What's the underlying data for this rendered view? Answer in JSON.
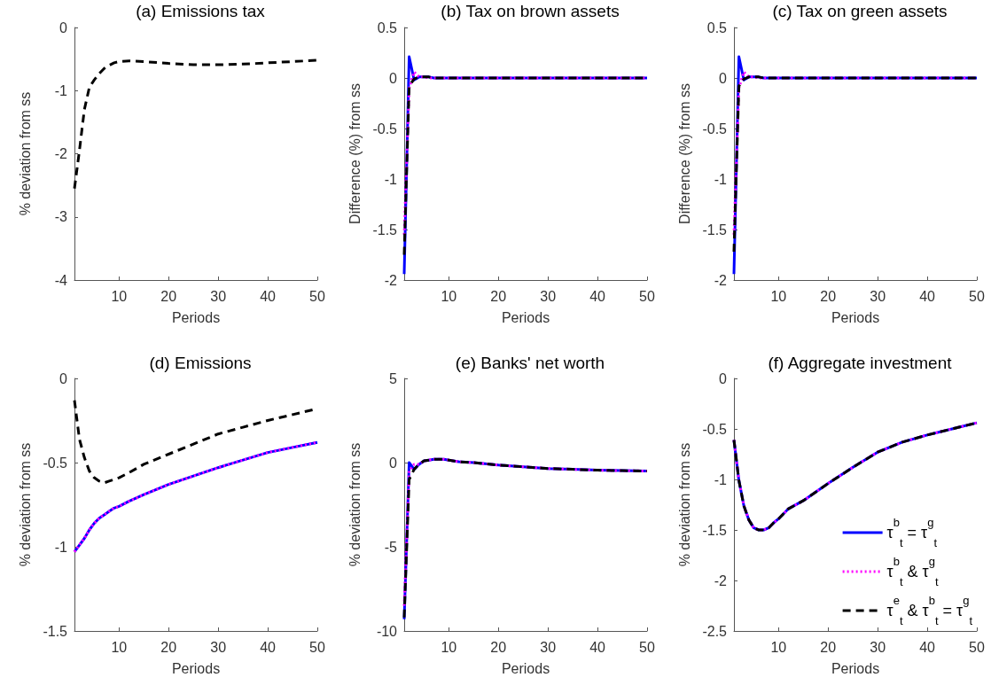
{
  "chart_data": [
    {
      "type": "line",
      "title": "(a) Emissions tax",
      "xlabel": "Periods",
      "ylabel": "% deviation from ss",
      "x": [
        1,
        2,
        3,
        4,
        5,
        6,
        7,
        8,
        9,
        10,
        12,
        15,
        20,
        25,
        30,
        35,
        40,
        45,
        50
      ],
      "xlim": [
        1,
        50
      ],
      "xticks": [
        10,
        20,
        30,
        40,
        50
      ],
      "ylim": [
        -4,
        0
      ],
      "yticks": [
        -4,
        -3,
        -2,
        -1,
        0
      ],
      "legend": false,
      "series": [
        {
          "color": "#000000",
          "line_style": "dashed",
          "values": [
            -2.55,
            -1.95,
            -1.3,
            -0.95,
            -0.83,
            -0.73,
            -0.65,
            -0.6,
            -0.56,
            -0.54,
            -0.53,
            -0.54,
            -0.57,
            -0.59,
            -0.59,
            -0.58,
            -0.56,
            -0.54,
            -0.52
          ]
        }
      ]
    },
    {
      "type": "line",
      "title": "(b) Tax on brown assets",
      "xlabel": "Periods",
      "ylabel": "Difference (%) from ss",
      "x": [
        1,
        2,
        3,
        4,
        5,
        6,
        7,
        8,
        9,
        10,
        12,
        15,
        20,
        25,
        30,
        35,
        40,
        45,
        50
      ],
      "xlim": [
        1,
        50
      ],
      "xticks": [
        10,
        20,
        30,
        40,
        50
      ],
      "ylim": [
        -2,
        0.5
      ],
      "yticks": [
        -2,
        -1.5,
        -1,
        -0.5,
        0,
        0.5
      ],
      "legend": false,
      "series": [
        {
          "color": "#0000ff",
          "line_style": "solid",
          "values": [
            -1.94,
            0.21,
            -0.02,
            0.01,
            0.01,
            0.01,
            0,
            0,
            0,
            0,
            0,
            0,
            0,
            0,
            0,
            0,
            0,
            0,
            0
          ]
        },
        {
          "color": "#ff00ff",
          "line_style": "dotted",
          "values": [
            -1.55,
            -0.1,
            0.06,
            0.01,
            0.01,
            0,
            0,
            0,
            0,
            0,
            0,
            0,
            0,
            0,
            0,
            0,
            0,
            0,
            0
          ]
        },
        {
          "color": "#000000",
          "line_style": "dashed",
          "values": [
            -1.75,
            -0.08,
            -0.01,
            0.01,
            0.01,
            0.01,
            0,
            0,
            0,
            0,
            0,
            0,
            0,
            0,
            0,
            0,
            0,
            0,
            0
          ]
        }
      ]
    },
    {
      "type": "line",
      "title": "(c) Tax on green assets",
      "xlabel": "Periods",
      "ylabel": "Difference (%) from ss",
      "x": [
        1,
        2,
        3,
        4,
        5,
        6,
        7,
        8,
        9,
        10,
        12,
        15,
        20,
        25,
        30,
        35,
        40,
        45,
        50
      ],
      "xlim": [
        1,
        50
      ],
      "xticks": [
        10,
        20,
        30,
        40,
        50
      ],
      "ylim": [
        -2,
        0.5
      ],
      "yticks": [
        -2,
        -1.5,
        -1,
        -0.5,
        0,
        0.5
      ],
      "legend": false,
      "series": [
        {
          "color": "#0000ff",
          "line_style": "solid",
          "values": [
            -1.94,
            0.21,
            -0.02,
            0.01,
            0.01,
            0.01,
            0,
            0,
            0,
            0,
            0,
            0,
            0,
            0,
            0,
            0,
            0,
            0,
            0
          ]
        },
        {
          "color": "#ff00ff",
          "line_style": "dotted",
          "values": [
            -1.55,
            -0.1,
            0.06,
            0.01,
            0.01,
            0,
            0,
            0,
            0,
            0,
            0,
            0,
            0,
            0,
            0,
            0,
            0,
            0,
            0
          ]
        },
        {
          "color": "#000000",
          "line_style": "dashed",
          "values": [
            -1.72,
            -0.08,
            -0.01,
            0.01,
            0.01,
            0.01,
            0,
            0,
            0,
            0,
            0,
            0,
            0,
            0,
            0,
            0,
            0,
            0,
            0
          ]
        }
      ]
    },
    {
      "type": "line",
      "title": "(d) Emissions",
      "xlabel": "Periods",
      "ylabel": "% deviation from ss",
      "x": [
        1,
        2,
        3,
        4,
        5,
        6,
        7,
        8,
        9,
        10,
        12,
        15,
        20,
        25,
        30,
        35,
        40,
        45,
        50
      ],
      "xlim": [
        1,
        50
      ],
      "xticks": [
        10,
        20,
        30,
        40,
        50
      ],
      "ylim": [
        -1.5,
        0
      ],
      "yticks": [
        -1.5,
        -1,
        -0.5,
        0
      ],
      "legend": false,
      "series": [
        {
          "color": "#0000ff",
          "line_style": "solid",
          "values": [
            -1.03,
            -0.99,
            -0.95,
            -0.9,
            -0.86,
            -0.83,
            -0.81,
            -0.79,
            -0.77,
            -0.76,
            -0.73,
            -0.69,
            -0.63,
            -0.58,
            -0.53,
            -0.485,
            -0.44,
            -0.41,
            -0.38
          ]
        },
        {
          "color": "#ff00ff",
          "line_style": "dotted",
          "values": [
            -1.03,
            -0.99,
            -0.95,
            -0.9,
            -0.86,
            -0.83,
            -0.81,
            -0.79,
            -0.77,
            -0.76,
            -0.73,
            -0.69,
            -0.63,
            -0.58,
            -0.53,
            -0.485,
            -0.44,
            -0.41,
            -0.38
          ]
        },
        {
          "color": "#000000",
          "line_style": "dashed",
          "values": [
            -0.13,
            -0.36,
            -0.47,
            -0.55,
            -0.59,
            -0.61,
            -0.62,
            -0.61,
            -0.6,
            -0.59,
            -0.56,
            -0.51,
            -0.45,
            -0.39,
            -0.33,
            -0.29,
            -0.25,
            -0.215,
            -0.18
          ]
        }
      ]
    },
    {
      "type": "line",
      "title": "(e) Banks' net worth",
      "xlabel": "Periods",
      "ylabel": "% deviation from ss",
      "x": [
        1,
        2,
        3,
        4,
        5,
        6,
        7,
        8,
        9,
        10,
        12,
        15,
        20,
        25,
        30,
        35,
        40,
        45,
        50
      ],
      "xlim": [
        1,
        50
      ],
      "xticks": [
        10,
        20,
        30,
        40,
        50
      ],
      "ylim": [
        -10,
        5
      ],
      "yticks": [
        -10,
        -5,
        0,
        5
      ],
      "legend": false,
      "series": [
        {
          "color": "#0000ff",
          "line_style": "solid",
          "values": [
            -9.3,
            0,
            -0.4,
            -0.1,
            0.1,
            0.15,
            0.2,
            0.2,
            0.2,
            0.15,
            0.05,
            0,
            -0.15,
            -0.25,
            -0.35,
            -0.4,
            -0.45,
            -0.48,
            -0.5
          ]
        },
        {
          "color": "#ff00ff",
          "line_style": "dotted",
          "values": [
            -8.5,
            -0.5,
            -0.1,
            -0.1,
            0.1,
            0.15,
            0.2,
            0.2,
            0.2,
            0.15,
            0.05,
            0,
            -0.15,
            -0.25,
            -0.35,
            -0.4,
            -0.45,
            -0.48,
            -0.5
          ]
        },
        {
          "color": "#000000",
          "line_style": "dashed",
          "values": [
            -9.2,
            -1,
            -0.4,
            -0.1,
            0.1,
            0.15,
            0.2,
            0.2,
            0.2,
            0.15,
            0.05,
            0,
            -0.15,
            -0.25,
            -0.35,
            -0.4,
            -0.45,
            -0.48,
            -0.5
          ]
        }
      ]
    },
    {
      "type": "line",
      "title": "(f) Aggregate investment",
      "xlabel": "Periods",
      "ylabel": "% deviation from ss",
      "x": [
        1,
        2,
        3,
        4,
        5,
        6,
        7,
        8,
        9,
        10,
        12,
        15,
        20,
        25,
        30,
        35,
        40,
        45,
        50
      ],
      "xlim": [
        1,
        50
      ],
      "xticks": [
        10,
        20,
        30,
        40,
        50
      ],
      "ylim": [
        -2.5,
        0
      ],
      "yticks": [
        -2.5,
        -2,
        -1.5,
        -1,
        -0.5,
        0
      ],
      "legend": "bottom right",
      "series": [
        {
          "name": "τ$^{b}$$_{t}$ = τ$^{g}$$_{t}$",
          "color": "#0000ff",
          "line_style": "solid",
          "values": [
            -0.61,
            -1.01,
            -1.26,
            -1.4,
            -1.48,
            -1.5,
            -1.5,
            -1.48,
            -1.43,
            -1.39,
            -1.29,
            -1.21,
            -1.04,
            -0.88,
            -0.73,
            -0.63,
            -0.56,
            -0.5,
            -0.44
          ]
        },
        {
          "name": "τ$^{b}$$_{t}$ & τ$^{g}$$_{t}$",
          "color": "#ff00ff",
          "line_style": "dotted",
          "values": [
            -0.61,
            -1.01,
            -1.26,
            -1.4,
            -1.48,
            -1.5,
            -1.5,
            -1.48,
            -1.43,
            -1.39,
            -1.29,
            -1.21,
            -1.04,
            -0.88,
            -0.73,
            -0.63,
            -0.56,
            -0.5,
            -0.44
          ]
        },
        {
          "name": "τ$^{e}$$_{t}$ & τ$^{b}$$_{t}$ = τ$^{g}$$_{t}$",
          "color": "#000000",
          "line_style": "dashed",
          "values": [
            -0.61,
            -1.01,
            -1.26,
            -1.4,
            -1.48,
            -1.5,
            -1.5,
            -1.48,
            -1.43,
            -1.39,
            -1.29,
            -1.21,
            -1.04,
            -0.88,
            -0.73,
            -0.63,
            -0.56,
            -0.5,
            -0.44
          ]
        }
      ]
    }
  ]
}
